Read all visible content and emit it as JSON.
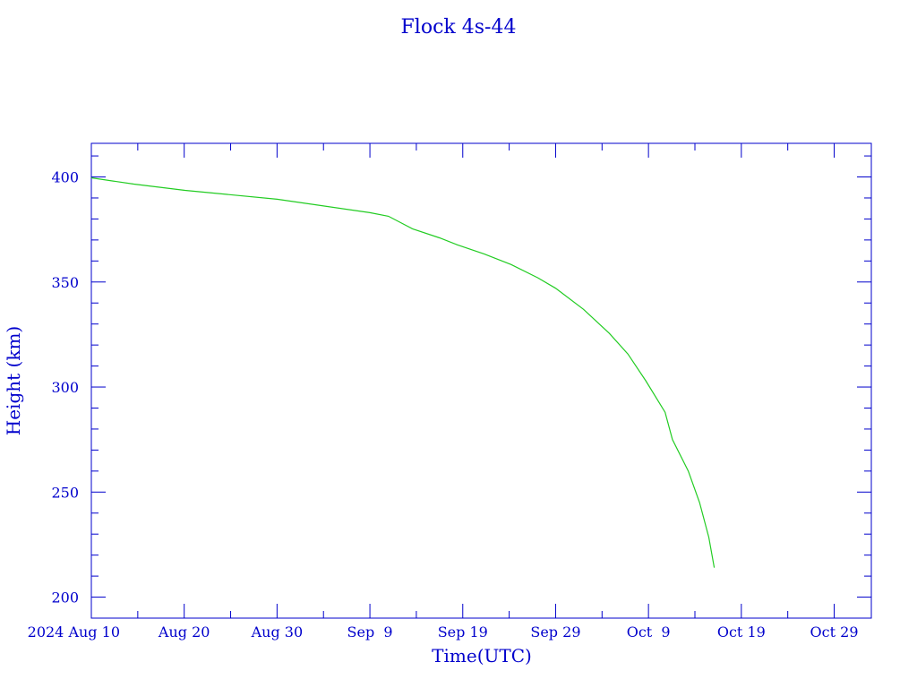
{
  "chart_data": {
    "type": "line",
    "title": "Flock 4s-44",
    "xlabel": "Time(UTC)",
    "ylabel": "Height (km)",
    "xlim": [
      "2024-08-10T00:00",
      "2024-11-02T00:00"
    ],
    "ylim": [
      190,
      416
    ],
    "x_tick_labels": [
      {
        "date": "2024-08-10",
        "label": "2024 Aug 10"
      },
      {
        "date": "2024-08-20",
        "label": "Aug 20"
      },
      {
        "date": "2024-08-30",
        "label": "Aug 30"
      },
      {
        "date": "2024-09-09",
        "label": "Sep  9"
      },
      {
        "date": "2024-09-19",
        "label": "Sep 19"
      },
      {
        "date": "2024-09-29",
        "label": "Sep 29"
      },
      {
        "date": "2024-10-09",
        "label": "Oct  9"
      },
      {
        "date": "2024-10-19",
        "label": "Oct 19"
      },
      {
        "date": "2024-10-29",
        "label": "Oct 29"
      }
    ],
    "y_ticks": [
      200,
      250,
      300,
      350,
      400
    ],
    "grid": false,
    "colors": {
      "axes": "#0000cc",
      "line": "#22cc22",
      "background": "#ffffff"
    },
    "series": [
      {
        "x": [
          "2024-08-10T00:00",
          "2024-08-14T14:00",
          "2024-08-20T02:00",
          "2024-08-30T00:00",
          "2024-09-09T00:00",
          "2024-09-11T00:00",
          "2024-09-13T14:00",
          "2024-09-16T12:00",
          "2024-09-18T10:00",
          "2024-09-21T07:00",
          "2024-09-24T05:00",
          "2024-09-27T02:00",
          "2024-09-29T00:00",
          "2024-10-02T00:00",
          "2024-10-04T19:00",
          "2024-10-06T19:00",
          "2024-10-08T17:00",
          "2024-10-10T19:00",
          "2024-10-11T14:00",
          "2024-10-13T07:00",
          "2024-10-14T12:00",
          "2024-10-15T12:00",
          "2024-10-16T02:00"
        ],
        "y": [
          399.6,
          396.6,
          393.6,
          389.4,
          383.0,
          381.3,
          375.3,
          371.0,
          367.7,
          363.4,
          358.3,
          352.0,
          347.0,
          337.0,
          325.5,
          315.7,
          303.0,
          288.0,
          275.0,
          260.0,
          245.0,
          228.5,
          214.0
        ]
      }
    ]
  }
}
